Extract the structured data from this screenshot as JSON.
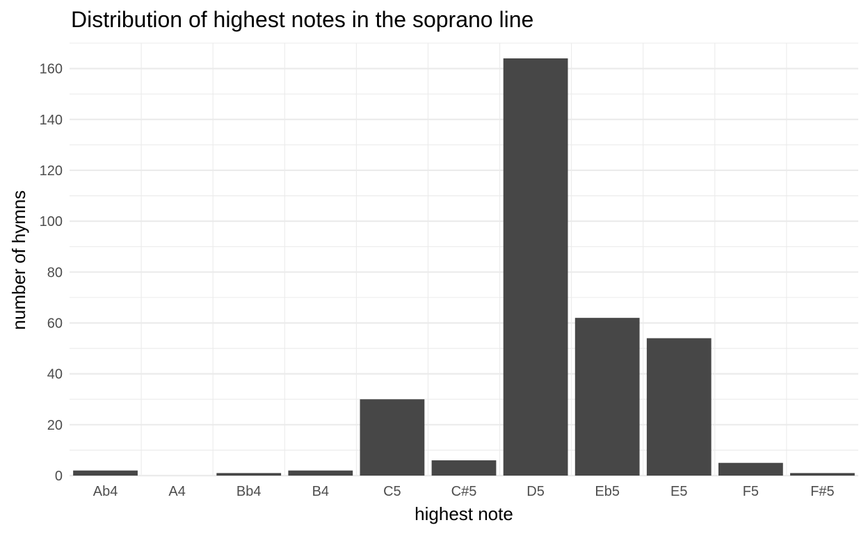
{
  "chart_data": {
    "type": "bar",
    "title": "Distribution of highest notes in the soprano line",
    "xlabel": "highest note",
    "ylabel": "number of hymns",
    "categories": [
      "Ab4",
      "A4",
      "Bb4",
      "B4",
      "C5",
      "C#5",
      "D5",
      "Eb5",
      "E5",
      "F5",
      "F#5"
    ],
    "values": [
      2,
      0,
      1,
      2,
      30,
      6,
      164,
      62,
      54,
      5,
      1
    ],
    "ylim": [
      0,
      170
    ],
    "yticks": [
      "0",
      "20",
      "40",
      "60",
      "80",
      "100",
      "120",
      "140",
      "160"
    ],
    "grid": true,
    "bar_color": "#474747",
    "grid_color": "#ebebeb"
  }
}
